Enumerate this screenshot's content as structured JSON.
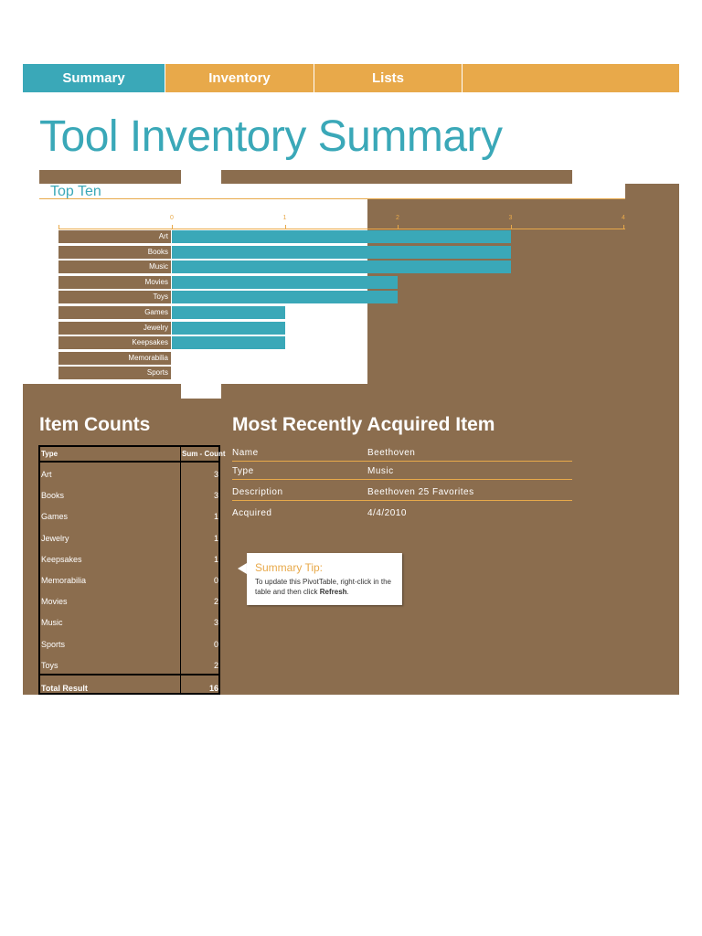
{
  "tabs": [
    {
      "label": "Summary",
      "color": "#3AA8B8"
    },
    {
      "label": "Inventory",
      "color": "#E8A94A"
    },
    {
      "label": "Lists",
      "color": "#E8A94A"
    }
  ],
  "page_title": "Tool Inventory Summary",
  "top_ten": {
    "heading": "Top Ten",
    "ticks": [
      "0",
      "1",
      "2",
      "3",
      "4"
    ]
  },
  "chart_data": {
    "type": "bar",
    "orientation": "horizontal",
    "title": "",
    "categories": [
      "Art",
      "Books",
      "Music",
      "Movies",
      "Toys",
      "Games",
      "Jewelry",
      "Keepsakes",
      "Memorabilia",
      "Sports"
    ],
    "values": [
      3,
      3,
      3,
      2,
      2,
      1,
      1,
      1,
      0,
      0
    ],
    "xlim": [
      0,
      4
    ],
    "bar_color": "#3AA8B8"
  },
  "item_counts": {
    "heading": "Item Counts",
    "col_type": "Type",
    "col_sum": "Sum - Count",
    "rows": [
      {
        "type": "Art",
        "count": "3"
      },
      {
        "type": "Books",
        "count": "3"
      },
      {
        "type": "Games",
        "count": "1"
      },
      {
        "type": "Jewelry",
        "count": "1"
      },
      {
        "type": "Keepsakes",
        "count": "1"
      },
      {
        "type": "Memorabilia",
        "count": "0"
      },
      {
        "type": "Movies",
        "count": "2"
      },
      {
        "type": "Music",
        "count": "3"
      },
      {
        "type": "Sports",
        "count": "0"
      },
      {
        "type": "Toys",
        "count": "2"
      }
    ],
    "total_label": "Total Result",
    "total_value": "16"
  },
  "recent": {
    "heading": "Most Recently Acquired Item",
    "rows": [
      {
        "label": "Name",
        "value": "Beethoven"
      },
      {
        "label": "Type",
        "value": "Music"
      },
      {
        "label": "Description",
        "value": "Beethoven 25 Favorites"
      },
      {
        "label": "Acquired",
        "value": "4/4/2010"
      }
    ]
  },
  "tip": {
    "title": "Summary Tip:",
    "text": "To update this PivotTable, right-click in the table and then click",
    "bold": "Refresh",
    "end": "."
  },
  "colors": {
    "accent": "#3AA8B8",
    "orange": "#E8A94A",
    "brown": "#8B6D4E"
  }
}
